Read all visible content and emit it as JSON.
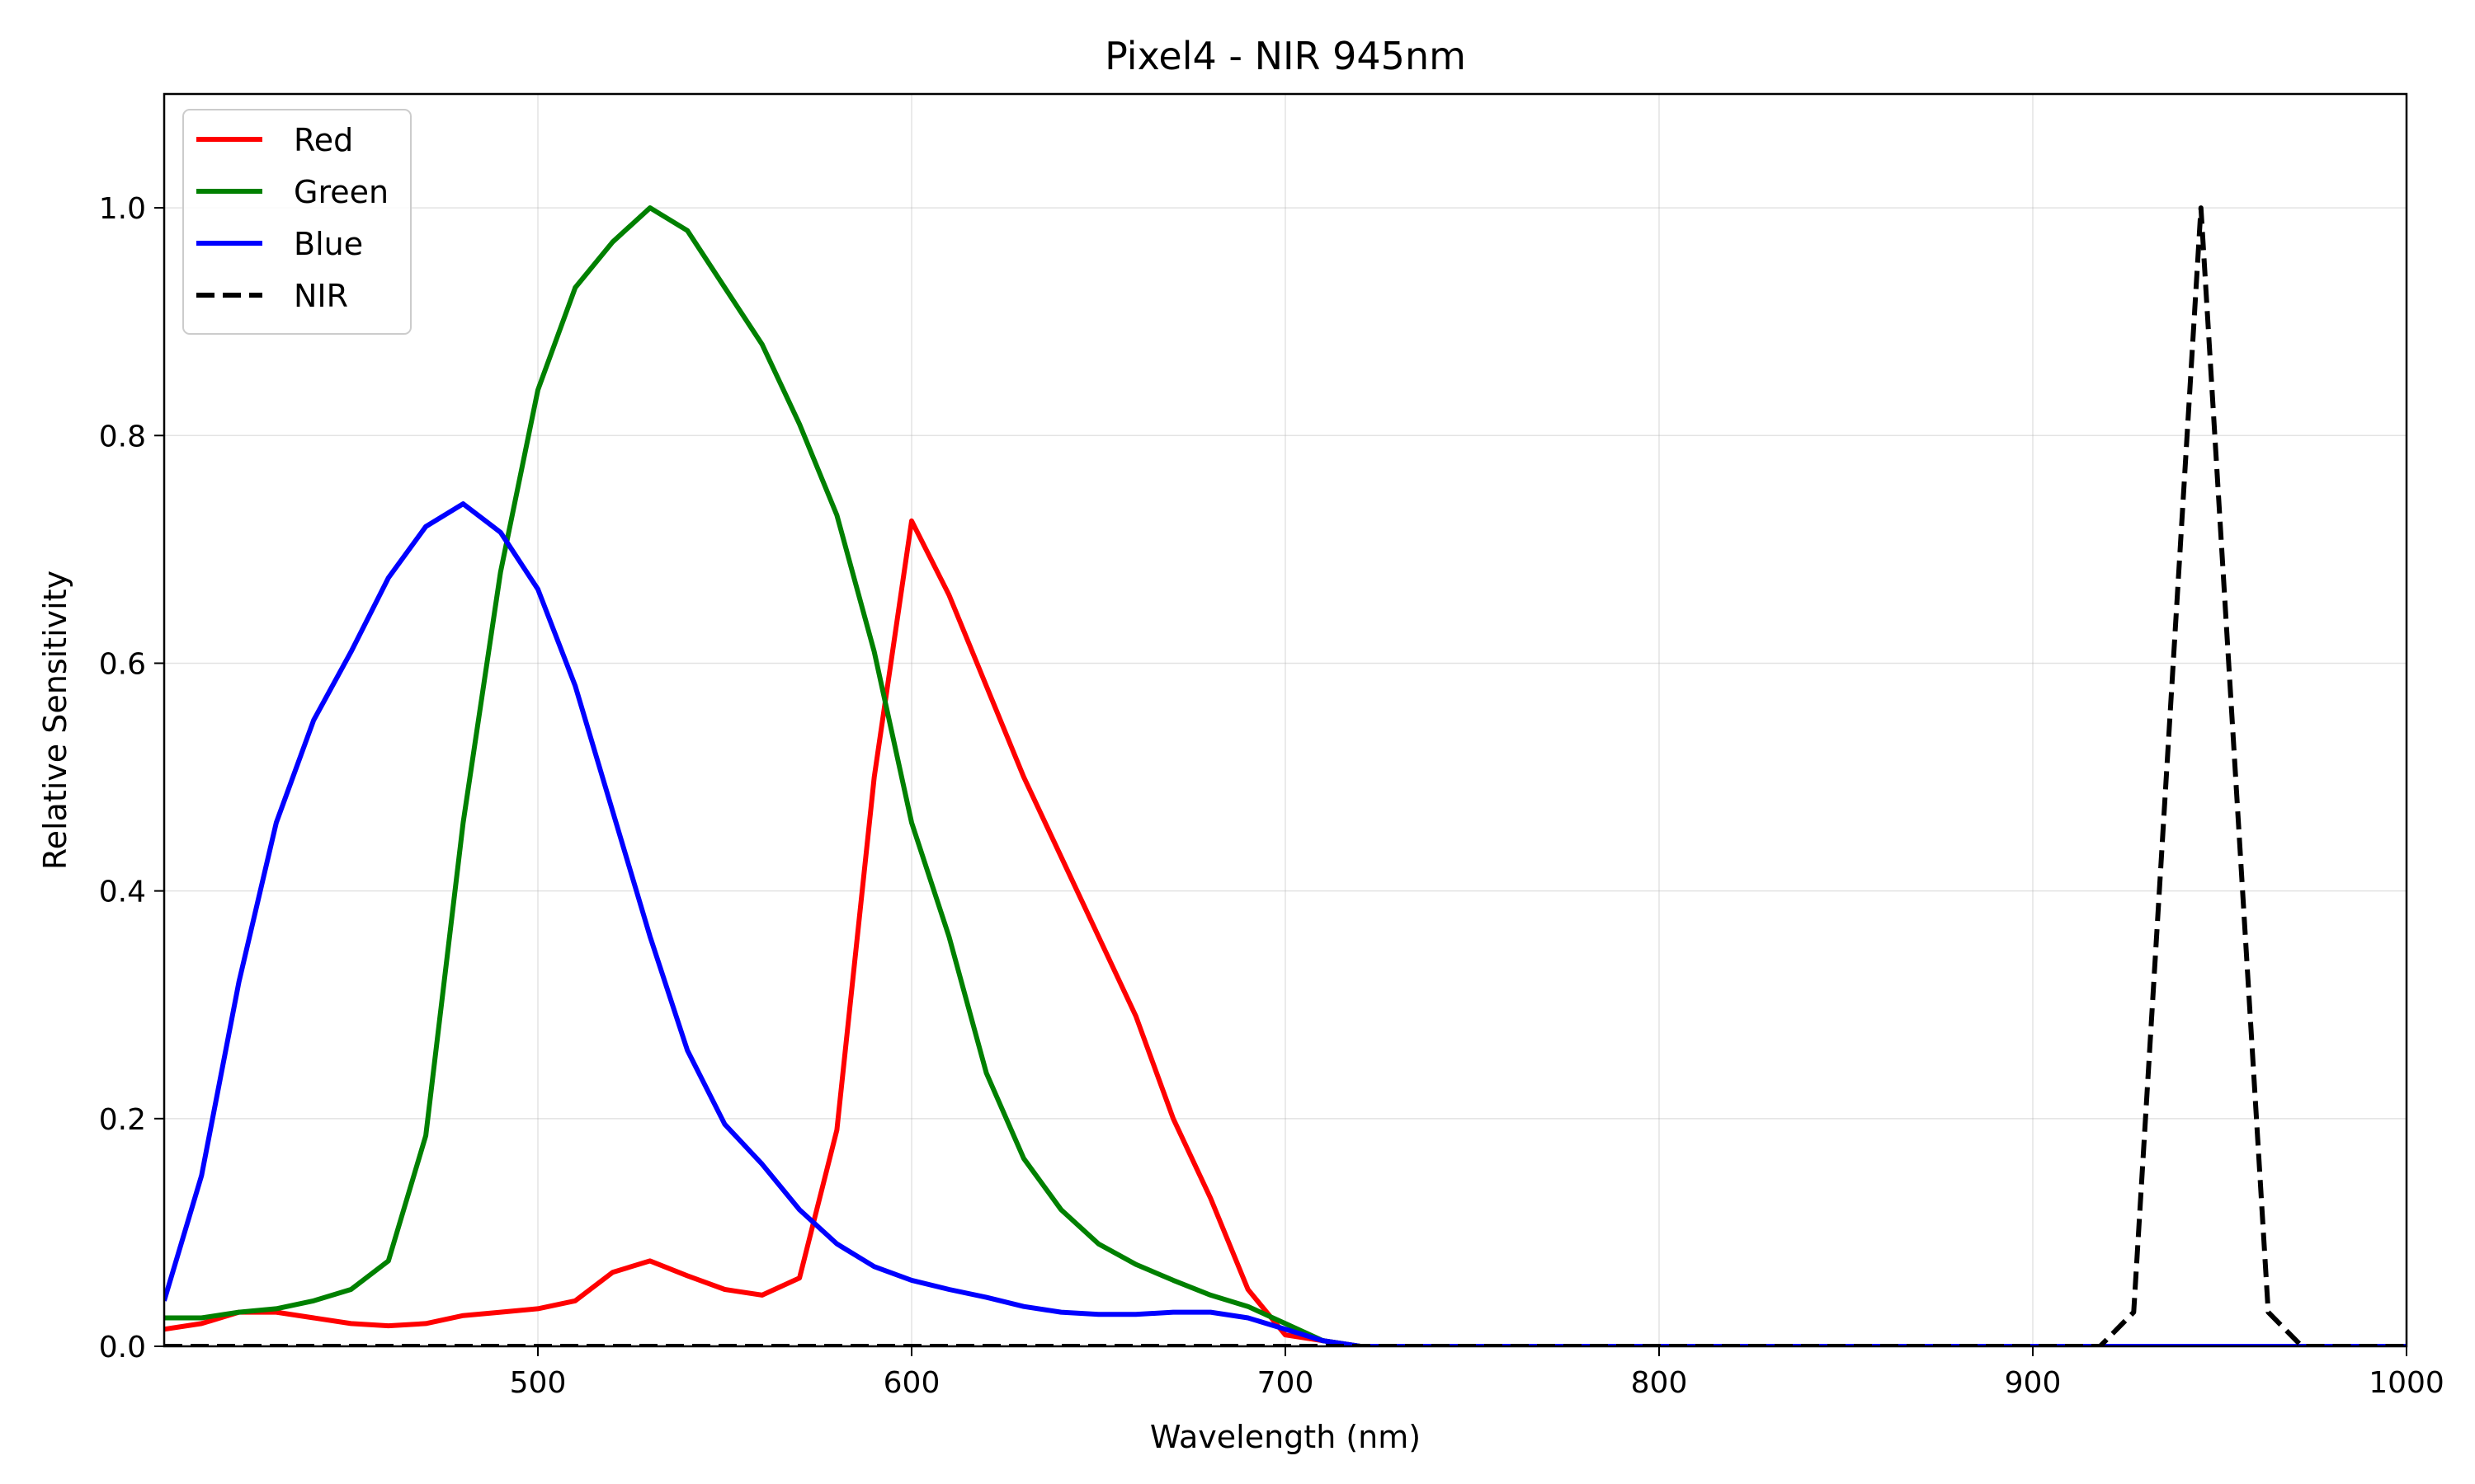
{
  "chart_data": {
    "type": "line",
    "title": "Pixel4 - NIR 945nm",
    "xlabel": "Wavelength (nm)",
    "ylabel": "Relative Sensitivity",
    "xlim": [
      400,
      1000
    ],
    "ylim": [
      0,
      1.1
    ],
    "xticks": [
      500,
      600,
      700,
      800,
      900,
      1000
    ],
    "yticks": [
      0.0,
      0.2,
      0.4,
      0.6,
      0.8,
      1.0
    ],
    "xtick_labels": [
      "500",
      "600",
      "700",
      "800",
      "900",
      "1000"
    ],
    "ytick_labels": [
      "0.0",
      "0.2",
      "0.4",
      "0.6",
      "0.8",
      "1.0"
    ],
    "grid": true,
    "legend_position": "top-left",
    "series": [
      {
        "name": "Red",
        "color": "#ff0000",
        "style": "solid",
        "x": [
          400,
          410,
          420,
          430,
          440,
          450,
          460,
          470,
          480,
          490,
          500,
          510,
          520,
          530,
          540,
          550,
          560,
          570,
          580,
          590,
          600,
          610,
          620,
          630,
          640,
          650,
          660,
          670,
          680,
          690,
          700,
          710,
          720,
          1000
        ],
        "y": [
          0.015,
          0.02,
          0.03,
          0.03,
          0.025,
          0.02,
          0.018,
          0.02,
          0.027,
          0.03,
          0.033,
          0.04,
          0.065,
          0.075,
          0.062,
          0.05,
          0.045,
          0.06,
          0.19,
          0.5,
          0.725,
          0.66,
          0.58,
          0.5,
          0.43,
          0.36,
          0.29,
          0.2,
          0.13,
          0.05,
          0.01,
          0.005,
          0.0,
          0.0
        ]
      },
      {
        "name": "Green",
        "color": "#008000",
        "style": "solid",
        "x": [
          400,
          410,
          420,
          430,
          440,
          450,
          460,
          470,
          480,
          490,
          500,
          510,
          520,
          530,
          540,
          550,
          560,
          570,
          580,
          590,
          600,
          610,
          620,
          630,
          640,
          650,
          660,
          670,
          680,
          690,
          700,
          710,
          720,
          1000
        ],
        "y": [
          0.025,
          0.025,
          0.03,
          0.033,
          0.04,
          0.05,
          0.075,
          0.185,
          0.46,
          0.68,
          0.84,
          0.93,
          0.97,
          1.0,
          0.98,
          0.93,
          0.88,
          0.81,
          0.73,
          0.61,
          0.46,
          0.36,
          0.24,
          0.165,
          0.12,
          0.09,
          0.072,
          0.058,
          0.045,
          0.035,
          0.02,
          0.005,
          0.0,
          0.0
        ]
      },
      {
        "name": "Blue",
        "color": "#0000ff",
        "style": "solid",
        "x": [
          400,
          410,
          420,
          430,
          440,
          450,
          460,
          470,
          480,
          490,
          500,
          510,
          520,
          530,
          540,
          550,
          560,
          570,
          580,
          590,
          600,
          610,
          620,
          630,
          640,
          650,
          660,
          670,
          680,
          690,
          700,
          710,
          720,
          1000
        ],
        "y": [
          0.04,
          0.15,
          0.32,
          0.46,
          0.55,
          0.61,
          0.675,
          0.72,
          0.74,
          0.715,
          0.665,
          0.58,
          0.47,
          0.36,
          0.26,
          0.195,
          0.16,
          0.12,
          0.09,
          0.07,
          0.058,
          0.05,
          0.043,
          0.035,
          0.03,
          0.028,
          0.028,
          0.03,
          0.03,
          0.025,
          0.015,
          0.005,
          0.0,
          0.0
        ]
      },
      {
        "name": "NIR",
        "color": "#000000",
        "style": "dashed",
        "x": [
          400,
          918,
          927,
          945,
          963,
          972,
          1000
        ],
        "y": [
          0.0,
          0.0,
          0.03,
          1.0,
          0.03,
          0.0,
          0.0
        ]
      }
    ]
  }
}
